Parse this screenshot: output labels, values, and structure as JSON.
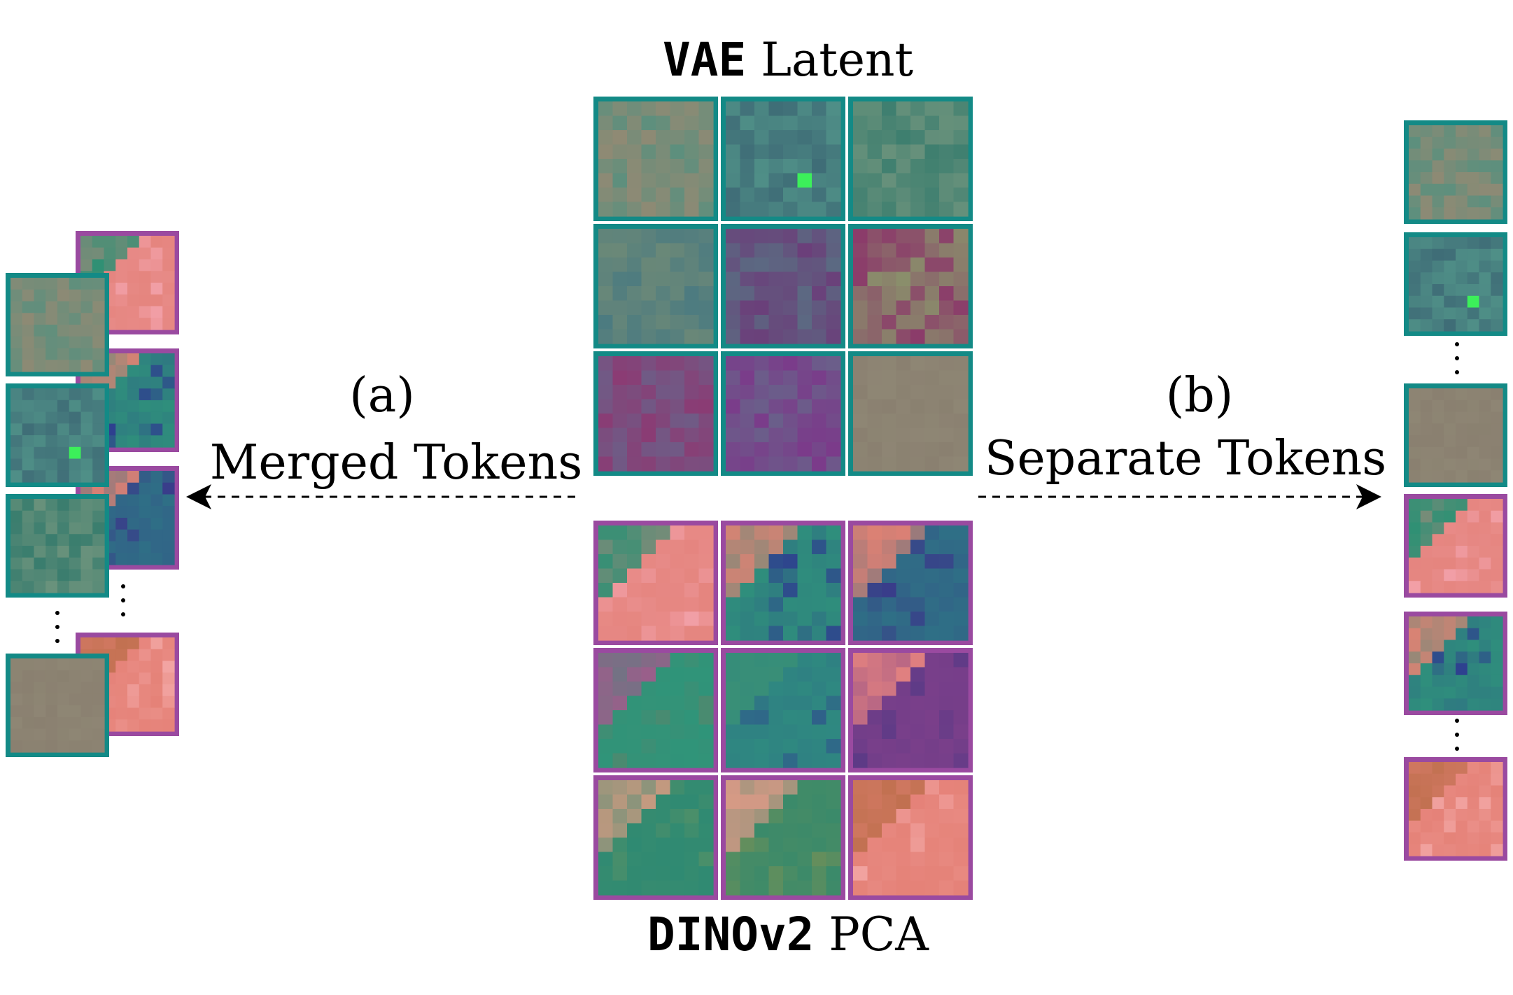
{
  "title_top": {
    "code": "VAE",
    "text": " Latent"
  },
  "title_bottom": {
    "code": "DINOv2",
    "text": " PCA"
  },
  "label_a": {
    "letter": "(a)",
    "text": "Merged Tokens"
  },
  "label_b": {
    "letter": "(b)",
    "text": "Separate Tokens"
  },
  "colors": {
    "vae_border": "#138a86",
    "dino_border": "#9a4aa0",
    "grid_gap": "#ffffff",
    "text": "#000000"
  },
  "vae_patches": [
    {
      "name": "vae-patch-1",
      "base": "#8f8a74",
      "accent": "#5d8f7d",
      "green": false
    },
    {
      "name": "vae-patch-2",
      "base": "#4f8f87",
      "accent": "#3f6d77",
      "green": true
    },
    {
      "name": "vae-patch-3",
      "base": "#6a927c",
      "accent": "#3a7d6e",
      "green": false
    },
    {
      "name": "vae-patch-4",
      "base": "#6a8878",
      "accent": "#4c7b80",
      "green": false
    },
    {
      "name": "vae-patch-5",
      "base": "#5b6a82",
      "accent": "#6b3f7a",
      "green": false
    },
    {
      "name": "vae-patch-6",
      "base": "#8a8f6b",
      "accent": "#8b3c6a",
      "green": false
    },
    {
      "name": "vae-patch-7",
      "base": "#6f5b86",
      "accent": "#8c3a73",
      "green": false
    },
    {
      "name": "vae-patch-8",
      "base": "#6a5f8a",
      "accent": "#7b3a8a",
      "green": false
    },
    {
      "name": "vae-patch-9",
      "base": "#8e8674",
      "accent": "#8a8070",
      "green": false
    }
  ],
  "dino_patches": [
    {
      "name": "dino-patch-1",
      "base": "#e5857f",
      "accent": "#f2a0a8",
      "corner": "#2f9074"
    },
    {
      "name": "dino-patch-2",
      "base": "#2f8f7c",
      "accent": "#2e3f8f",
      "corner": "#d98374"
    },
    {
      "name": "dino-patch-3",
      "base": "#2f6f86",
      "accent": "#3a3a8a",
      "corner": "#df8174"
    },
    {
      "name": "dino-patch-4",
      "base": "#2f9479",
      "accent": "#4a8a70",
      "corner": "#9a5f8a"
    },
    {
      "name": "dino-patch-5",
      "base": "#2f8a80",
      "accent": "#2f5f8a",
      "corner": "#3a8f76"
    },
    {
      "name": "dino-patch-6",
      "base": "#7a3f8a",
      "accent": "#5a3a86",
      "corner": "#e08080"
    },
    {
      "name": "dino-patch-7",
      "base": "#2f8a72",
      "accent": "#4a8f6a",
      "corner": "#c89a80"
    },
    {
      "name": "dino-patch-8",
      "base": "#3a8a6a",
      "accent": "#6a8f5a",
      "corner": "#d89a86"
    },
    {
      "name": "dino-patch-9",
      "base": "#e58278",
      "accent": "#f2a4a2",
      "corner": "#c0704f"
    }
  ]
}
